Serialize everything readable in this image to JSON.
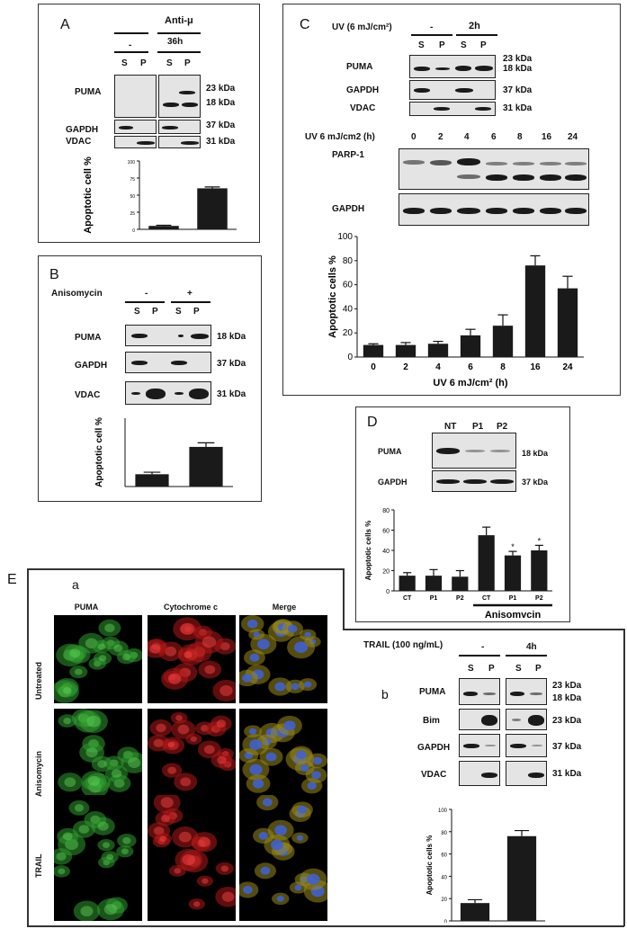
{
  "panelA": {
    "letter": "A",
    "treatment": "Anti-μ",
    "conditions": [
      "-",
      "36h"
    ],
    "lanes": [
      "S",
      "P",
      "S",
      "P"
    ],
    "rows": [
      "PUMA",
      "GAPDH",
      "VDAC"
    ],
    "kda": [
      "23 kDa",
      "18 kDa",
      "37 kDa",
      "31 kDa"
    ],
    "chart_data": {
      "type": "bar",
      "ylabel": "Apoptotic cell %",
      "ylim": [
        0,
        100
      ],
      "yticks": [
        "0",
        "25",
        "50",
        "75",
        "100"
      ],
      "values": [
        5,
        60
      ],
      "errors": [
        1,
        2
      ]
    }
  },
  "panelB": {
    "letter": "B",
    "treatment": "Anisomycin",
    "conditions": [
      "-",
      "+"
    ],
    "lanes": [
      "S",
      "P",
      "S",
      "P"
    ],
    "rows": [
      "PUMA",
      "GAPDH",
      "VDAC"
    ],
    "kda": [
      "18 kDa",
      "37 kDa",
      "31 kDa"
    ],
    "chart_data": {
      "type": "bar",
      "ylabel": "Apoptotic cell %",
      "values": [
        18,
        58
      ],
      "errors": [
        3,
        6
      ],
      "ylim": [
        0,
        100
      ]
    }
  },
  "panelC": {
    "letter": "C",
    "treatment": "UV (6 mJ/cm²)",
    "conditions": [
      "-",
      "2h"
    ],
    "lanes": [
      "S",
      "P",
      "S",
      "P"
    ],
    "rows": [
      "PUMA",
      "GAPDH",
      "VDAC"
    ],
    "kda": [
      "23 kDa",
      "18 kDa",
      "37 kDa",
      "31 kDa"
    ],
    "timecourse_label": "UV 6 mJ/cm2 (h)",
    "timepoints": [
      "0",
      "2",
      "4",
      "6",
      "8",
      "16",
      "24"
    ],
    "rows2": [
      "PARP-1",
      "GAPDH"
    ],
    "chart_data": {
      "type": "bar",
      "ylabel": "Apoptotic cells %",
      "xlabel": "UV 6 mJ/cm² (h)",
      "categories": [
        "0",
        "2",
        "4",
        "6",
        "8",
        "16",
        "24"
      ],
      "values": [
        10,
        10,
        11,
        18,
        26,
        76,
        57
      ],
      "errors": [
        1,
        2,
        2,
        5,
        9,
        8,
        10
      ],
      "ylim": [
        0,
        100
      ],
      "yticks": [
        "0",
        "20",
        "40",
        "60",
        "80",
        "100"
      ]
    }
  },
  "panelD": {
    "letter": "D",
    "lanes": [
      "NT",
      "P1",
      "P2"
    ],
    "rows": [
      "PUMA",
      "GAPDH"
    ],
    "kda": [
      "18 kDa",
      "37 kDa"
    ],
    "chart_data": {
      "type": "bar",
      "ylabel": "Apoptotic cells %",
      "categories": [
        "CT",
        "P1",
        "P2",
        "CT",
        "P1",
        "P2"
      ],
      "values": [
        15,
        15,
        14,
        55,
        35,
        40
      ],
      "errors": [
        3,
        6,
        6,
        8,
        4,
        5
      ],
      "significance": [
        "",
        "",
        "",
        "",
        "*",
        "*"
      ],
      "ylim": [
        0,
        80
      ],
      "yticks": [
        "0",
        "20",
        "40",
        "60",
        "80"
      ],
      "group_label": "Anisomycin"
    }
  },
  "panelE": {
    "letter": "E",
    "sub_a": "a",
    "sub_b": "b",
    "columns": [
      "PUMA",
      "Cytochrome c",
      "Merge"
    ],
    "row_labels": [
      "Untreated",
      "Anisomycin",
      "TRAIL"
    ],
    "treatment": "TRAIL (100 ng/mL)",
    "conditions": [
      "-",
      "4h"
    ],
    "lanes": [
      "S",
      "P",
      "S",
      "P"
    ],
    "rows": [
      "PUMA",
      "Bim",
      "GAPDH",
      "VDAC"
    ],
    "kda": [
      "23 kDa",
      "18 kDa",
      "23 kDa",
      "37 kDa",
      "31 kDa"
    ],
    "chart_data": {
      "type": "bar",
      "ylabel": "Apoptotic cells %",
      "values": [
        16,
        76
      ],
      "errors": [
        3,
        5
      ],
      "ylim": [
        0,
        100
      ],
      "yticks": [
        "0",
        "20",
        "40",
        "60",
        "80",
        "100"
      ]
    }
  }
}
